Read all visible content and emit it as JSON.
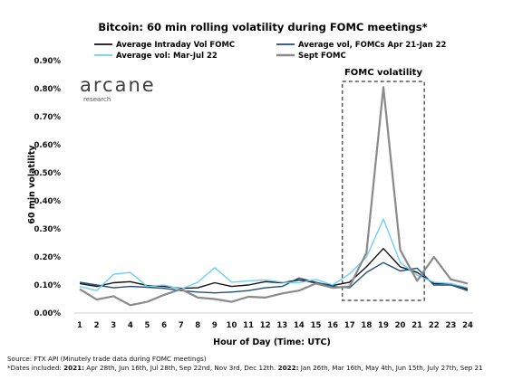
{
  "chart_data": {
    "type": "line",
    "title": "Bitcoin: 60 min rolling volatility during FOMC meetings*",
    "xlabel": "Hour of Day (Time: UTC)",
    "ylabel": "60 min volatility",
    "x": [
      1,
      2,
      3,
      4,
      5,
      6,
      7,
      8,
      9,
      10,
      11,
      12,
      13,
      14,
      15,
      16,
      17,
      18,
      19,
      20,
      21,
      22,
      23,
      24
    ],
    "ylim": [
      0,
      0.009
    ],
    "y_ticks": [
      "0.00%",
      "0.10%",
      "0.20%",
      "0.30%",
      "0.40%",
      "0.50%",
      "0.60%",
      "0.70%",
      "0.80%",
      "0.90%"
    ],
    "legend_placement": "top",
    "series": [
      {
        "name": "Average Intraday Vol FOMC",
        "color": "#111111",
        "width": 1.4,
        "values": [
          0.00105,
          0.00095,
          0.00108,
          0.00112,
          0.00098,
          0.00095,
          0.00088,
          0.0009,
          0.00108,
          0.00095,
          0.001,
          0.00112,
          0.00108,
          0.00118,
          0.00108,
          0.00098,
          0.0011,
          0.00165,
          0.0023,
          0.00165,
          0.00145,
          0.00105,
          0.00105,
          0.00085
        ]
      },
      {
        "name": "Average vol, FOMCs Apr 21-Jan 22",
        "color": "#1f4e79",
        "width": 1.4,
        "values": [
          0.0011,
          0.001,
          0.0009,
          0.00095,
          0.00092,
          0.00088,
          0.0008,
          0.00075,
          0.00072,
          0.00075,
          0.0008,
          0.0009,
          0.00095,
          0.00125,
          0.0011,
          0.00095,
          0.0009,
          0.00145,
          0.0018,
          0.0015,
          0.0016,
          0.001,
          0.001,
          0.0008
        ]
      },
      {
        "name": "Average vol: Mar-Jul 22",
        "color": "#6ecff6",
        "width": 1.4,
        "values": [
          0.00095,
          0.0008,
          0.00138,
          0.00145,
          0.00095,
          0.001,
          0.00085,
          0.0011,
          0.00162,
          0.0011,
          0.00115,
          0.00118,
          0.0011,
          0.00108,
          0.0012,
          0.001,
          0.0014,
          0.002,
          0.00335,
          0.0018,
          0.00135,
          0.0011,
          0.00105,
          0.0009
        ]
      },
      {
        "name": "Sept FOMC",
        "color": "#8a8a8a",
        "width": 2.2,
        "values": [
          0.00085,
          0.00048,
          0.0006,
          0.00028,
          0.0004,
          0.00065,
          0.00085,
          0.00055,
          0.0005,
          0.0004,
          0.00058,
          0.00055,
          0.0007,
          0.0008,
          0.00105,
          0.0009,
          0.00095,
          0.00215,
          0.00805,
          0.00225,
          0.00115,
          0.002,
          0.0012,
          0.00105
        ]
      }
    ],
    "annotation": {
      "label": "FOMC volatility",
      "x_from": 17,
      "x_to": 21
    }
  },
  "brand": {
    "name": "arcane",
    "sub": "research"
  },
  "footer": {
    "source": "Source: FTX API (Minutely trade data during FOMC meetings)",
    "dates_prefix": "*Dates included: ",
    "y2021_label": "2021:",
    "y2021_text": " Apr 28th, Jun 16th, Jul 28th, Sep 22nd, Nov 3rd, Dec 12th. ",
    "y2022_label": "2022:",
    "y2022_text": " Jan 26th, Mar 16th, May 4th, Jun 15th, July 27th, Sep 21"
  }
}
